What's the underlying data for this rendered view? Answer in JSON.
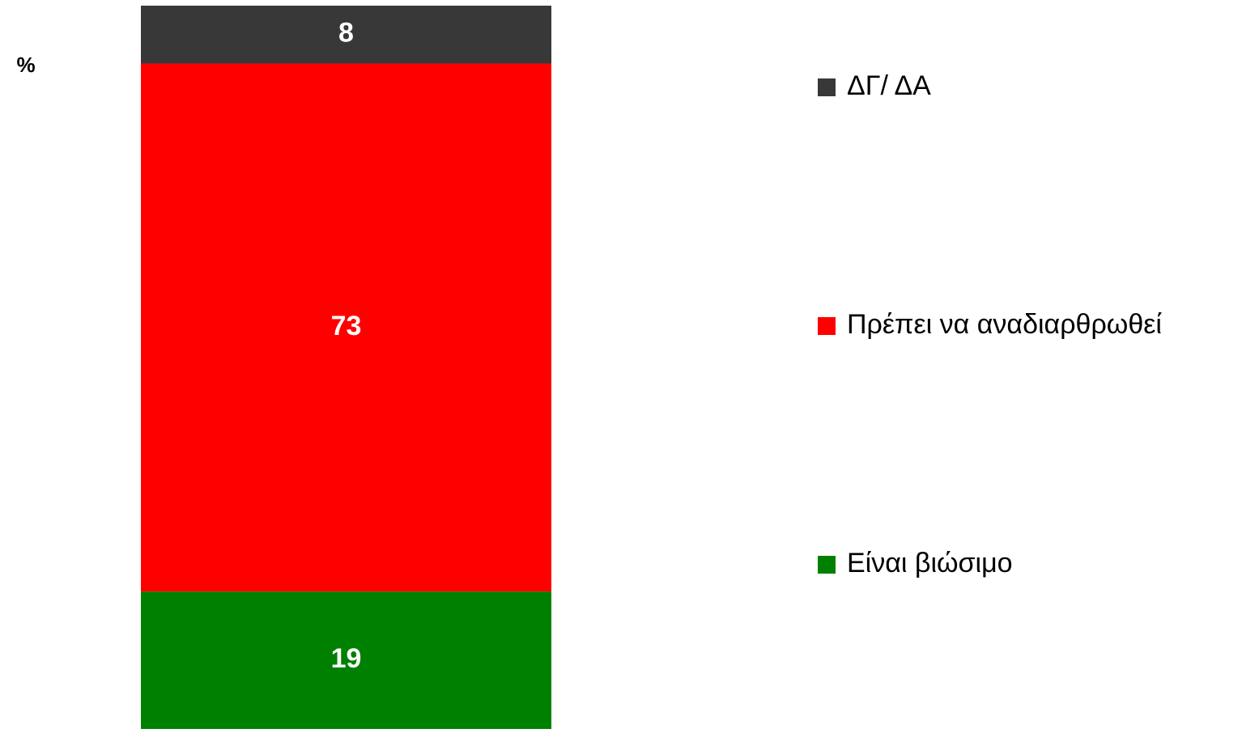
{
  "chart_data": {
    "type": "bar",
    "stacked": true,
    "ylabel": "%",
    "categories": [
      null
    ],
    "series": [
      {
        "name": "Είναι βιώσιμο",
        "color": "#008000",
        "values": [
          19
        ]
      },
      {
        "name": "Πρέπει να αναδιαρθρωθεί",
        "color": "#ff0000",
        "values": [
          73
        ]
      },
      {
        "name": "ΔΓ/ ΔΑ",
        "color": "#383838",
        "values": [
          8
        ]
      }
    ],
    "ylim": [
      0,
      100
    ],
    "legend": "right"
  }
}
